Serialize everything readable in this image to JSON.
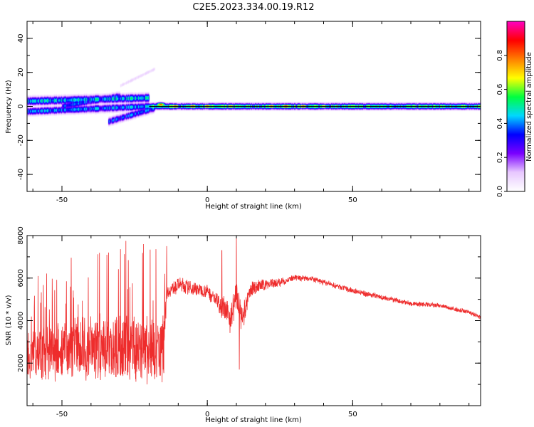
{
  "title": "C2E5.2023.334.00.19.R12",
  "colors": {
    "snr_line": "#ee2c2c",
    "zero_line": "#000000"
  },
  "chart_data": [
    {
      "type": "heatmap",
      "name": "spectrogram",
      "xlabel": "Height of straight line (km)",
      "ylabel": "Frequency (Hz)",
      "xlim": [
        -62,
        94
      ],
      "ylim": [
        -50,
        50
      ],
      "x_ticks": [
        -50,
        0,
        50
      ],
      "y_ticks": [
        -40,
        -20,
        0,
        20,
        40
      ],
      "colorbar": {
        "label": "Normalized spectral amplitude",
        "range": [
          0,
          1
        ],
        "ticks": [
          "0.0",
          "0.2",
          "0.4",
          "0.6",
          "0.8"
        ],
        "tick_values": [
          0,
          0.2,
          0.4,
          0.6,
          0.8
        ],
        "colors": [
          "#ffffff",
          "#e8c8ff",
          "#7a00ff",
          "#0000ff",
          "#00d8ff",
          "#00ff40",
          "#ffff00",
          "#ff8000",
          "#ff0000",
          "#ff00c0"
        ]
      },
      "bands": [
        {
          "x0": -62,
          "x1": -20,
          "y_start": 3,
          "y_end": 5,
          "half_width": 2.2,
          "amp": 0.55
        },
        {
          "x0": -62,
          "x1": -20,
          "y_start": -3,
          "y_end": 0,
          "half_width": 2.0,
          "amp": 0.5
        },
        {
          "x0": -50,
          "x1": -30,
          "y_start": 0,
          "y_end": 6,
          "half_width": 2.0,
          "amp": 0.45
        },
        {
          "x0": -34,
          "x1": -18,
          "y_start": -9,
          "y_end": -1,
          "half_width": 2.0,
          "amp": 0.45
        },
        {
          "x0": -30,
          "x1": -18,
          "y_start": 12,
          "y_end": 22,
          "half_width": 1.0,
          "amp": 0.1
        },
        {
          "x0": -20,
          "x1": 94,
          "y_start": 0,
          "y_end": 0,
          "half_width": 1.6,
          "amp": 0.7
        }
      ],
      "hotspots": [
        {
          "x": -16,
          "y": 1,
          "amp": 0.85
        },
        {
          "x": -11,
          "y": 0,
          "amp": 0.92
        },
        {
          "x": -5,
          "y": 0,
          "amp": 0.9
        },
        {
          "x": 0,
          "y": 0,
          "amp": 0.9
        },
        {
          "x": 8,
          "y": 0,
          "amp": 0.85
        },
        {
          "x": 22,
          "y": 0,
          "amp": 0.88
        },
        {
          "x": 27,
          "y": 0,
          "amp": 0.95
        },
        {
          "x": 33,
          "y": 0,
          "amp": 0.9
        },
        {
          "x": 40,
          "y": 0,
          "amp": 0.8
        }
      ]
    },
    {
      "type": "line",
      "name": "snr",
      "xlabel": "Height of straight line (km)",
      "ylabel": "SNR (10 * v/v)",
      "xlim": [
        -62,
        94
      ],
      "ylim": [
        0,
        8000
      ],
      "x_ticks": [
        -50,
        0,
        50
      ],
      "y_ticks": [
        2000,
        4000,
        6000,
        8000
      ],
      "envelope": {
        "x": [
          -62,
          -50,
          -40,
          -30,
          -20,
          -15,
          -14,
          -10,
          -5,
          0,
          5,
          8,
          10,
          12,
          15,
          20,
          25,
          30,
          35,
          40,
          50,
          60,
          70,
          80,
          90,
          94
        ],
        "y": [
          2300,
          2600,
          2700,
          2700,
          2600,
          2700,
          5300,
          5700,
          5500,
          5400,
          4700,
          4100,
          5200,
          4000,
          5500,
          5700,
          5800,
          6000,
          6000,
          5800,
          5400,
          5100,
          4800,
          4700,
          4400,
          4150
        ]
      },
      "noise_amp": {
        "x": [
          -62,
          -40,
          -20,
          -15,
          -14,
          -10,
          0,
          5,
          10,
          15,
          20,
          30,
          50,
          94
        ],
        "y": [
          1300,
          1700,
          1800,
          1700,
          350,
          400,
          350,
          600,
          900,
          400,
          300,
          150,
          150,
          110
        ]
      },
      "spikes": [
        {
          "x": -28,
          "y": 7750
        },
        {
          "x": -34,
          "y": 7200
        },
        {
          "x": -22,
          "y": 7600
        },
        {
          "x": -14,
          "y": 7500
        },
        {
          "x": 10,
          "y": 8000
        },
        {
          "x": 11,
          "y": 1700
        },
        {
          "x": 5,
          "y": 7300
        }
      ]
    }
  ]
}
